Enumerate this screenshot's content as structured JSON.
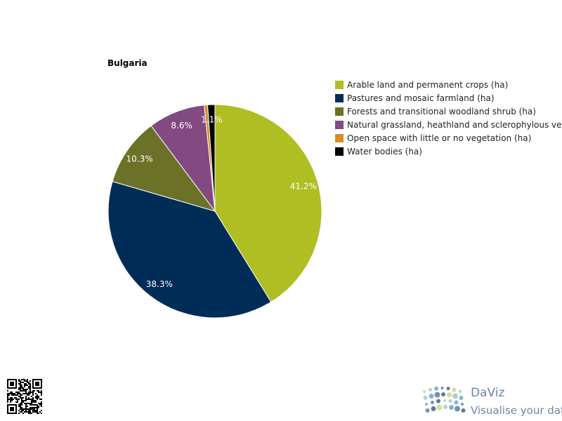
{
  "chart_data": {
    "type": "pie",
    "title": "Bulgaria",
    "slices": [
      {
        "name": "Arable land and permanent crops (ha)",
        "value": 41.2,
        "label": "41.2%",
        "color": "#afbe22"
      },
      {
        "name": "Pastures and mosaic farmland (ha)",
        "value": 38.3,
        "label": "38.3%",
        "color": "#002d57"
      },
      {
        "name": "Forests and transitional woodland shrub (ha)",
        "value": 10.3,
        "label": "10.3%",
        "color": "#6b7227"
      },
      {
        "name": "Natural grassland, heathland and sclerophylous vegetation (ha)",
        "value": 8.6,
        "label": "8.6%",
        "color": "#824a80"
      },
      {
        "name": "Open space with little or no vegetation (ha)",
        "value": 0.5,
        "label": "",
        "color": "#d58d27"
      },
      {
        "name": "Water bodies (ha)",
        "value": 1.1,
        "label": "1.1%",
        "color": "#000000"
      }
    ],
    "legend_position": "right"
  },
  "branding": {
    "name": "DaViz",
    "tagline": "Visualise your data"
  }
}
